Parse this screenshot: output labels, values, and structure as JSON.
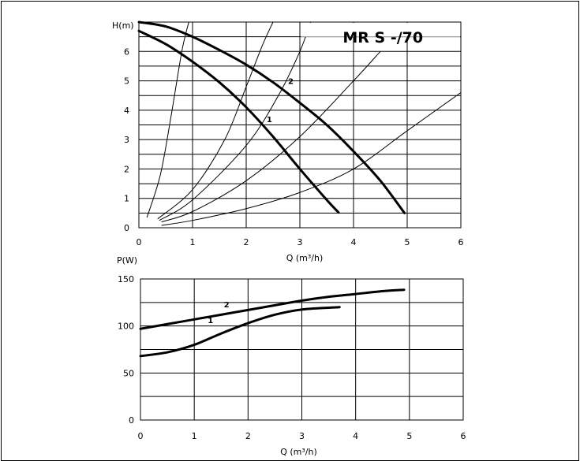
{
  "chart_data": [
    {
      "type": "line",
      "title": "MR S -/70",
      "xlabel": "Q (m³/h)",
      "ylabel": "H(m)",
      "xlim": [
        0,
        6
      ],
      "ylim": [
        0,
        7
      ],
      "grid": true,
      "x_ticks": [
        "0",
        "1",
        "2",
        "3",
        "4",
        "5",
        "6"
      ],
      "y_ticks": [
        "0",
        "1",
        "2",
        "3",
        "4",
        "5",
        "6"
      ],
      "series": [
        {
          "name": "1",
          "bold": true,
          "label_at": [
            2.38,
            3.6
          ],
          "points": [
            [
              0,
              6.7
            ],
            [
              0.5,
              6.25
            ],
            [
              1,
              5.65
            ],
            [
              1.5,
              4.95
            ],
            [
              2,
              4.1
            ],
            [
              2.5,
              3.1
            ],
            [
              3,
              2.0
            ],
            [
              3.5,
              0.95
            ],
            [
              3.72,
              0.52
            ]
          ]
        },
        {
          "name": "2",
          "bold": true,
          "label_at": [
            2.78,
            4.9
          ],
          "points": [
            [
              0,
              7.0
            ],
            [
              0.5,
              6.85
            ],
            [
              1,
              6.5
            ],
            [
              1.5,
              6.05
            ],
            [
              2,
              5.55
            ],
            [
              2.5,
              4.95
            ],
            [
              3,
              4.25
            ],
            [
              3.5,
              3.5
            ],
            [
              4,
              2.6
            ],
            [
              4.5,
              1.6
            ],
            [
              4.95,
              0.5
            ]
          ]
        }
      ],
      "system_curves": [
        [
          [
            0.15,
            0.35
          ],
          [
            0.4,
            1.8
          ],
          [
            0.6,
            3.8
          ],
          [
            0.8,
            6.0
          ],
          [
            0.93,
            7.0
          ]
        ],
        [
          [
            0.35,
            0.3
          ],
          [
            1.0,
            1.3
          ],
          [
            1.6,
            3.0
          ],
          [
            2.0,
            4.8
          ],
          [
            2.3,
            6.2
          ],
          [
            2.5,
            7.0
          ]
        ],
        [
          [
            0.38,
            0.25
          ],
          [
            1.0,
            0.95
          ],
          [
            2.0,
            2.8
          ],
          [
            2.6,
            4.5
          ],
          [
            3.0,
            6.0
          ],
          [
            3.2,
            7.0
          ]
        ],
        [
          [
            0.42,
            0.2
          ],
          [
            1.0,
            0.55
          ],
          [
            2.0,
            1.6
          ],
          [
            3.0,
            3.1
          ],
          [
            4.0,
            5.0
          ],
          [
            4.5,
            6.0
          ]
        ],
        [
          [
            0.42,
            0.08
          ],
          [
            1.0,
            0.25
          ],
          [
            2.0,
            0.65
          ],
          [
            3.0,
            1.2
          ],
          [
            4.0,
            2.0
          ],
          [
            5.0,
            3.3
          ],
          [
            6.0,
            4.6
          ]
        ]
      ]
    },
    {
      "type": "line",
      "title": "",
      "xlabel": "Q (m³/h)",
      "ylabel": "P(W)",
      "xlim": [
        0,
        6
      ],
      "ylim": [
        0,
        150
      ],
      "grid": true,
      "x_ticks": [
        "0",
        "1",
        "2",
        "3",
        "4",
        "5",
        "6"
      ],
      "y_ticks": [
        "0",
        "50",
        "100",
        "150"
      ],
      "series": [
        {
          "name": "1",
          "bold": true,
          "label_at": [
            1.25,
            103
          ],
          "points": [
            [
              0,
              68
            ],
            [
              0.5,
              72
            ],
            [
              1,
              80
            ],
            [
              1.5,
              92
            ],
            [
              2,
              103
            ],
            [
              2.5,
              112
            ],
            [
              3,
              117.5
            ],
            [
              3.7,
              120
            ]
          ]
        },
        {
          "name": "2",
          "bold": true,
          "label_at": [
            1.55,
            120
          ],
          "points": [
            [
              0,
              97
            ],
            [
              0.5,
              102
            ],
            [
              1,
              107
            ],
            [
              1.5,
              112
            ],
            [
              2,
              117
            ],
            [
              2.5,
              122
            ],
            [
              3,
              127
            ],
            [
              3.5,
              131
            ],
            [
              4,
              134
            ],
            [
              4.5,
              137
            ],
            [
              4.9,
              138.5
            ]
          ]
        }
      ]
    }
  ]
}
